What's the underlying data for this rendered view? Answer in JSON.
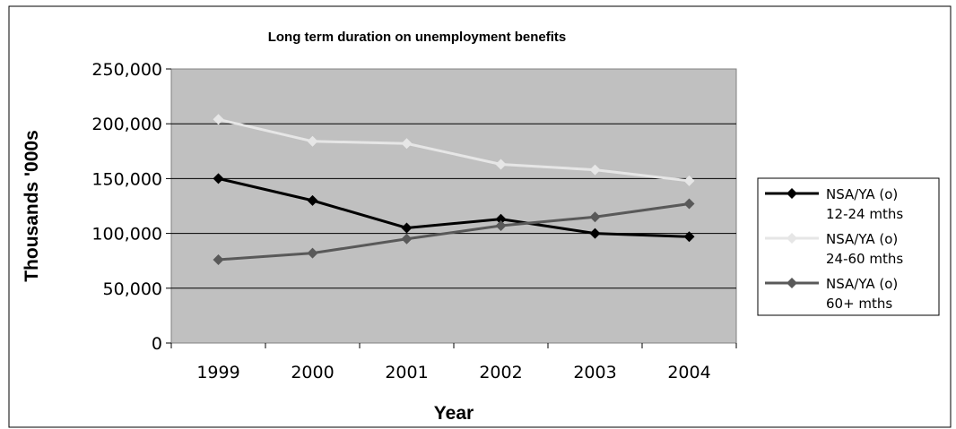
{
  "chart_data": {
    "type": "line",
    "title": "Long term duration on unemployment benefits",
    "xlabel": "Year",
    "ylabel": "Thousands '000s",
    "categories": [
      "1999",
      "2000",
      "2001",
      "2002",
      "2003",
      "2004"
    ],
    "ylim": [
      0,
      250000
    ],
    "yticks": [
      "0",
      "50,000",
      "100,000",
      "150,000",
      "200,000",
      "250,000"
    ],
    "grid": true,
    "legend_position": "right",
    "plot_background": "#c0c0c0",
    "series": [
      {
        "name": "NSA/YA (o) 12-24 mths",
        "name_lines": [
          "NSA/YA (o)",
          "12-24 mths"
        ],
        "color": "#000000",
        "values": [
          150000,
          130000,
          105000,
          113000,
          100000,
          97000
        ]
      },
      {
        "name": "NSA/YA (o) 24-60 mths",
        "name_lines": [
          "NSA/YA (o)",
          "24-60 mths"
        ],
        "color": "#e6e6e6",
        "values": [
          204000,
          184000,
          182000,
          163000,
          158000,
          148000
        ]
      },
      {
        "name": "NSA/YA (o) 60+ mths",
        "name_lines": [
          "NSA/YA (o)",
          "60+ mths"
        ],
        "color": "#595959",
        "values": [
          76000,
          82000,
          95000,
          107000,
          115000,
          127000
        ]
      }
    ]
  }
}
